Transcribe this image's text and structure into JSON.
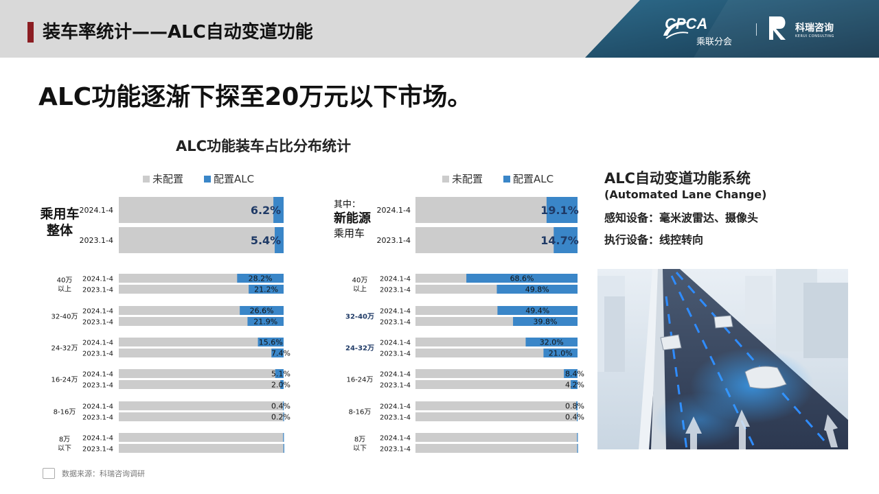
{
  "header": {
    "title": "装车率统计——ALC自动变道功能"
  },
  "logos": {
    "cpca": "CPCA",
    "cpca_sub": "乘联分会",
    "cpca_mark": "CPCA",
    "kerui": "科瑞咨询",
    "kerui_sub": "KERUI CONSULTING"
  },
  "headline": "ALC功能逐渐下探至20万元以下市场。",
  "chart_title": "ALC功能装车占比分布统计",
  "legend": {
    "not_configured": "未配置",
    "configured": "配置ALC"
  },
  "colors": {
    "gray": "#cccccc",
    "blue": "#3a86c8",
    "header_bg": "#d9d9d9",
    "accent_red": "#8b1d22",
    "logo_panel": "#1f4f6b"
  },
  "left_group": {
    "line1": "乘用车",
    "line2": "整体"
  },
  "right_group": {
    "prefix": "其中：",
    "line1": "新能源",
    "line2": "乘用车"
  },
  "chart_data": [
    {
      "type": "bar",
      "title": "ALC功能装车占比分布统计",
      "segment": "乘用车整体",
      "series": [
        {
          "name": "未配置"
        },
        {
          "name": "配置ALC"
        }
      ],
      "groups": [
        {
          "label": "",
          "rows": [
            {
              "period": "2024.1-4",
              "value": 6.2,
              "label": "6.2%"
            },
            {
              "period": "2023.1-4",
              "value": 5.4,
              "label": "5.4%"
            }
          ]
        },
        {
          "label": "40万 以上",
          "rows": [
            {
              "period": "2024.1-4",
              "value": 28.2,
              "label": "28.2%"
            },
            {
              "period": "2023.1-4",
              "value": 21.2,
              "label": "21.2%"
            }
          ]
        },
        {
          "label": "32-40万",
          "rows": [
            {
              "period": "2024.1-4",
              "value": 26.6,
              "label": "26.6%"
            },
            {
              "period": "2023.1-4",
              "value": 21.9,
              "label": "21.9%"
            }
          ]
        },
        {
          "label": "24-32万",
          "rows": [
            {
              "period": "2024.1-4",
              "value": 15.6,
              "label": "15.6%"
            },
            {
              "period": "2023.1-4",
              "value": 7.4,
              "label": "7.4%"
            }
          ]
        },
        {
          "label": "16-24万",
          "rows": [
            {
              "period": "2024.1-4",
              "value": 5.1,
              "label": "5.1%"
            },
            {
              "period": "2023.1-4",
              "value": 2.0,
              "label": "2.0%"
            }
          ]
        },
        {
          "label": "8-16万",
          "rows": [
            {
              "period": "2024.1-4",
              "value": 0.4,
              "label": "0.4%"
            },
            {
              "period": "2023.1-4",
              "value": 0.2,
              "label": "0.2%"
            }
          ]
        },
        {
          "label": "8万 以下",
          "rows": [
            {
              "period": "2024.1-4",
              "value": 0.3,
              "label": ""
            },
            {
              "period": "2023.1-4",
              "value": 0.1,
              "label": ""
            }
          ]
        }
      ]
    },
    {
      "type": "bar",
      "segment": "新能源乘用车",
      "series": [
        {
          "name": "未配置"
        },
        {
          "name": "配置ALC"
        }
      ],
      "groups": [
        {
          "label": "",
          "rows": [
            {
              "period": "2024.1-4",
              "value": 19.1,
              "label": "19.1%"
            },
            {
              "period": "2023.1-4",
              "value": 14.7,
              "label": "14.7%"
            }
          ]
        },
        {
          "label": "40万 以上",
          "rows": [
            {
              "period": "2024.1-4",
              "value": 68.6,
              "label": "68.6%"
            },
            {
              "period": "2023.1-4",
              "value": 49.8,
              "label": "49.8%"
            }
          ]
        },
        {
          "label": "32-40万",
          "rows": [
            {
              "period": "2024.1-4",
              "value": 49.4,
              "label": "49.4%"
            },
            {
              "period": "2023.1-4",
              "value": 39.8,
              "label": "39.8%"
            }
          ]
        },
        {
          "label": "24-32万",
          "rows": [
            {
              "period": "2024.1-4",
              "value": 32.0,
              "label": "32.0%"
            },
            {
              "period": "2023.1-4",
              "value": 21.0,
              "label": "21.0%"
            }
          ]
        },
        {
          "label": "16-24万",
          "rows": [
            {
              "period": "2024.1-4",
              "value": 8.4,
              "label": "8.4%"
            },
            {
              "period": "2023.1-4",
              "value": 4.2,
              "label": "4.2%"
            }
          ]
        },
        {
          "label": "8-16万",
          "rows": [
            {
              "period": "2024.1-4",
              "value": 0.8,
              "label": "0.8%"
            },
            {
              "period": "2023.1-4",
              "value": 0.4,
              "label": "0.4%"
            }
          ]
        },
        {
          "label": "8万 以下",
          "rows": [
            {
              "period": "2024.1-4",
              "value": 0.3,
              "label": ""
            },
            {
              "period": "2023.1-4",
              "value": 0.2,
              "label": ""
            }
          ]
        }
      ]
    }
  ],
  "right_panel": {
    "title": "ALC自动变道功能系统",
    "subtitle": "(Automated Lane Change)",
    "sensing": "感知设备：毫米波雷达、摄像头",
    "actuation": "执行设备：线控转向"
  },
  "source": "数据来源：科瑞咨询调研"
}
